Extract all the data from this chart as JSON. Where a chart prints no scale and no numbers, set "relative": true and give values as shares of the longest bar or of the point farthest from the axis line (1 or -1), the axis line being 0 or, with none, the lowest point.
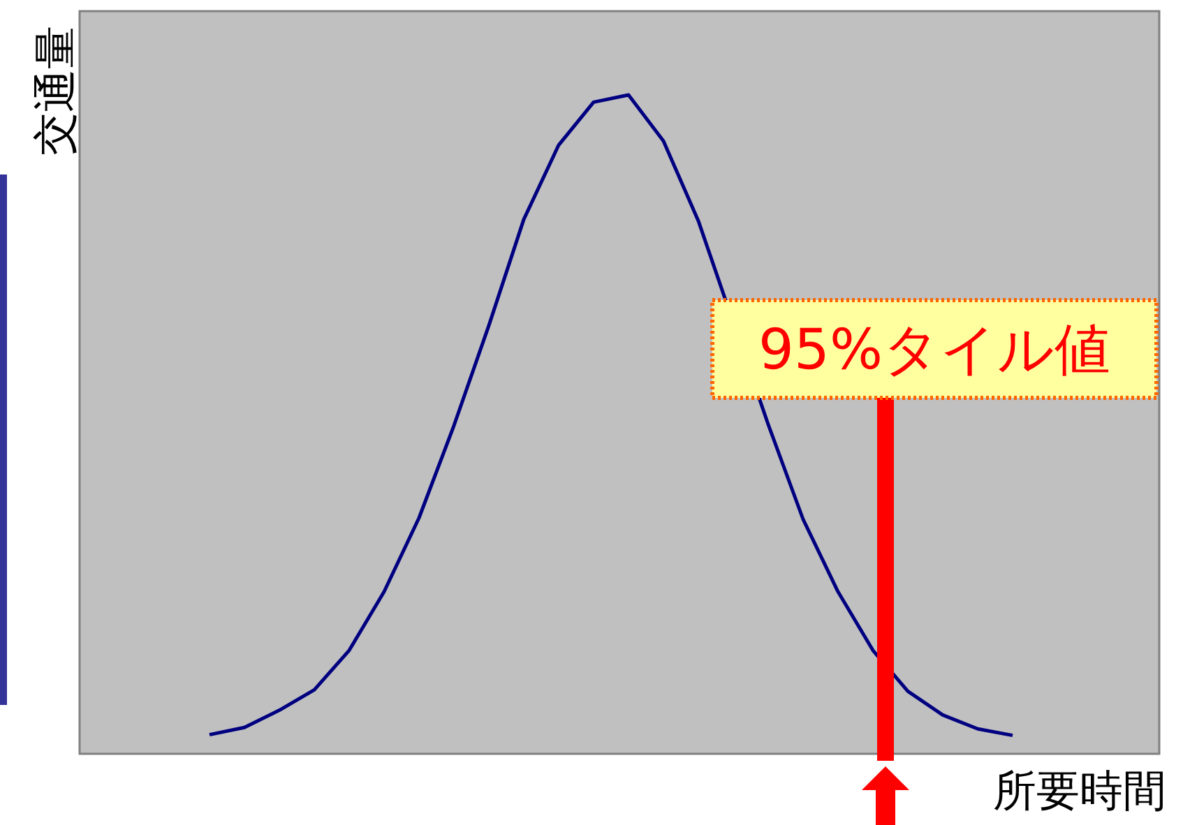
{
  "chart_data": {
    "type": "line",
    "relative": true,
    "xlabel": "所要時間",
    "ylabel": "交通量",
    "annotations": [
      "95%タイル値"
    ],
    "categories": [
      null,
      null,
      null,
      null,
      null,
      null,
      null,
      null,
      null,
      null,
      null,
      null,
      null,
      null,
      null,
      null,
      null,
      null,
      null,
      null,
      null,
      null,
      null,
      null
    ],
    "series": [
      {
        "color": "#000080",
        "values": [
          0.029,
          0.04,
          0.066,
          0.097,
          0.157,
          0.246,
          0.358,
          0.498,
          0.65,
          0.811,
          0.924,
          0.989,
          1.0,
          0.93,
          0.809,
          null,
          0.5,
          0.356,
          0.246,
          0.157,
          0.095,
          0.059,
          0.038,
          0.028
        ]
      }
    ],
    "grid": false,
    "marker": "none",
    "line_style": "solid"
  }
}
